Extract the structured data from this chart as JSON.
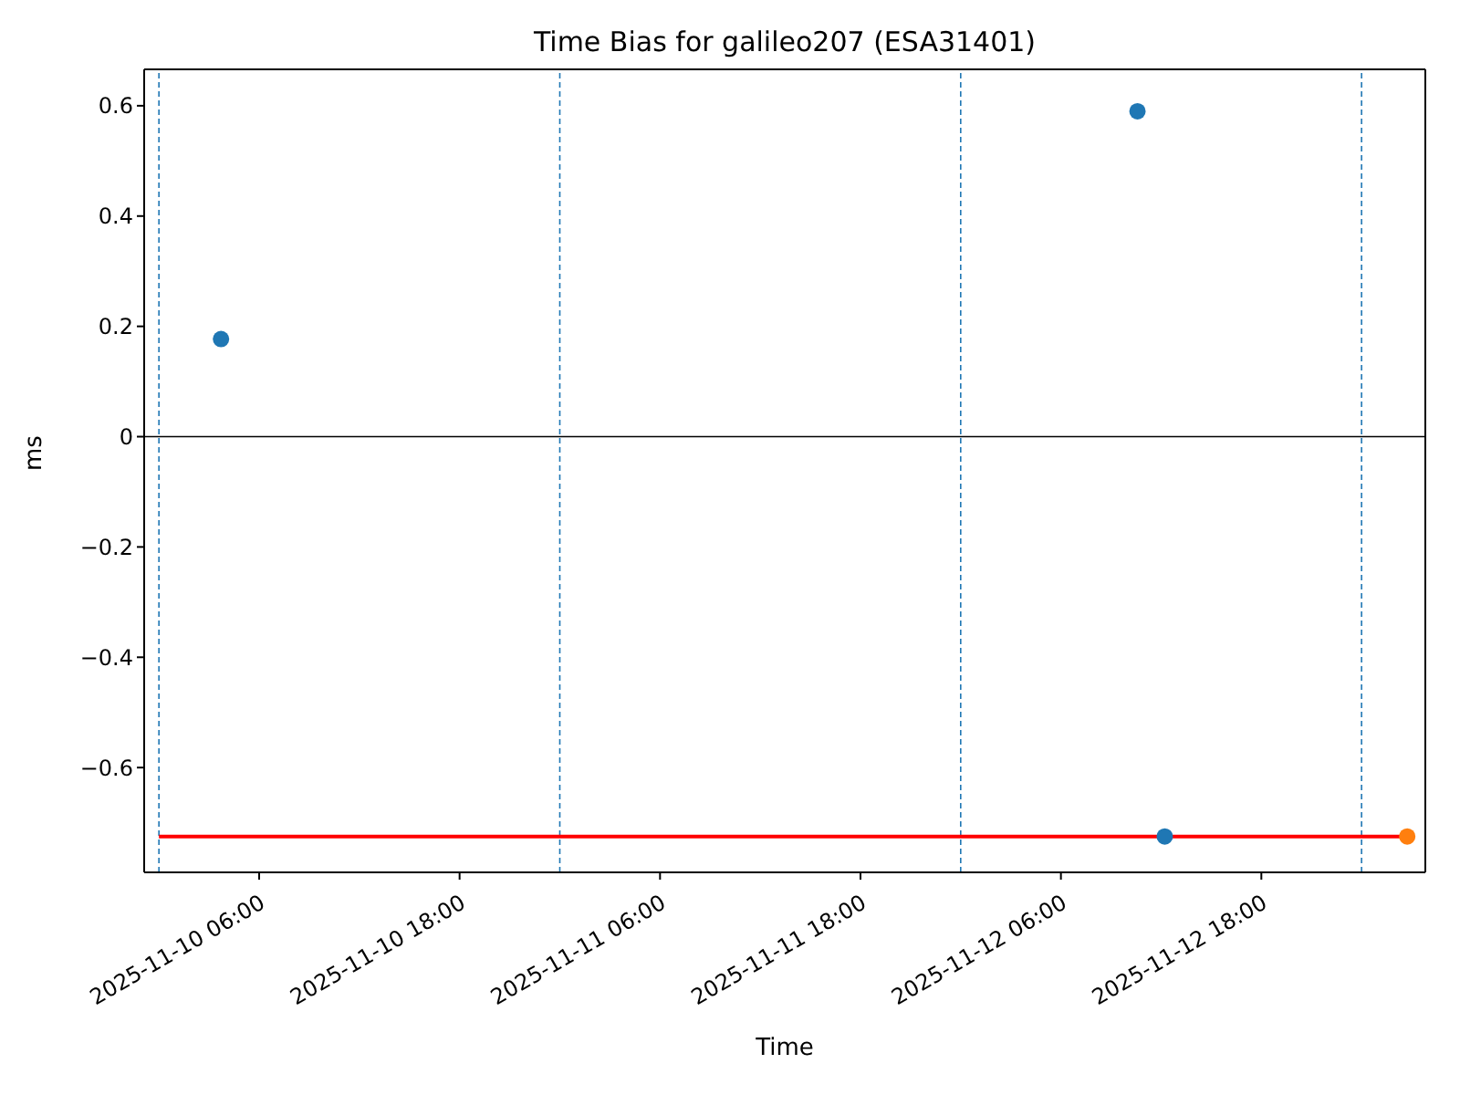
{
  "chart_data": {
    "type": "scatter",
    "title": "Time Bias for galileo207 (ESA31401)",
    "xlabel": "Time",
    "ylabel": "ms",
    "series": [
      {
        "type": "line",
        "color": "#ff0000",
        "x": [
          "2025-11-10T00:00",
          "2025-11-13T02:44"
        ],
        "values": [
          -0.725,
          -0.725
        ],
        "marker": "none"
      },
      {
        "color": "#1f77b4",
        "x": [
          "2025-11-10T03:43",
          "2025-11-12T10:35",
          "2025-11-12T12:13"
        ],
        "values": [
          0.177,
          0.59,
          -0.725
        ]
      },
      {
        "color": "#ff7f0e",
        "x": [
          "2025-11-13T02:44"
        ],
        "values": [
          -0.725
        ]
      }
    ],
    "xlim": [
      "2025-11-09T23:07",
      "2025-11-13T03:49"
    ],
    "xticks": [
      {
        "value": "2025-11-10T06:00",
        "label": "2025-11-10 06:00"
      },
      {
        "value": "2025-11-10T18:00",
        "label": "2025-11-10 18:00"
      },
      {
        "value": "2025-11-11T06:00",
        "label": "2025-11-11 06:00"
      },
      {
        "value": "2025-11-11T18:00",
        "label": "2025-11-11 18:00"
      },
      {
        "value": "2025-11-12T06:00",
        "label": "2025-11-12 06:00"
      },
      {
        "value": "2025-11-12T18:00",
        "label": "2025-11-12 18:00"
      }
    ],
    "ylim": [
      -0.79,
      0.666
    ],
    "yticks": [
      -0.6,
      -0.4,
      -0.2,
      0,
      0.2,
      0.4,
      0.6
    ],
    "ref_lines": [
      {
        "axis": "y",
        "value": 0,
        "color": "#000000",
        "line_style": "solid"
      },
      {
        "axis": "x",
        "value": "2025-11-10T00:00",
        "color": "#1f77b4",
        "line_style": "dashed"
      },
      {
        "axis": "x",
        "value": "2025-11-11T00:00",
        "color": "#1f77b4",
        "line_style": "dashed"
      },
      {
        "axis": "x",
        "value": "2025-11-12T00:00",
        "color": "#1f77b4",
        "line_style": "dashed"
      },
      {
        "axis": "x",
        "value": "2025-11-13T00:00",
        "color": "#1f77b4",
        "line_style": "dashed"
      }
    ],
    "marker": "circle",
    "grid": false,
    "legend": false
  }
}
